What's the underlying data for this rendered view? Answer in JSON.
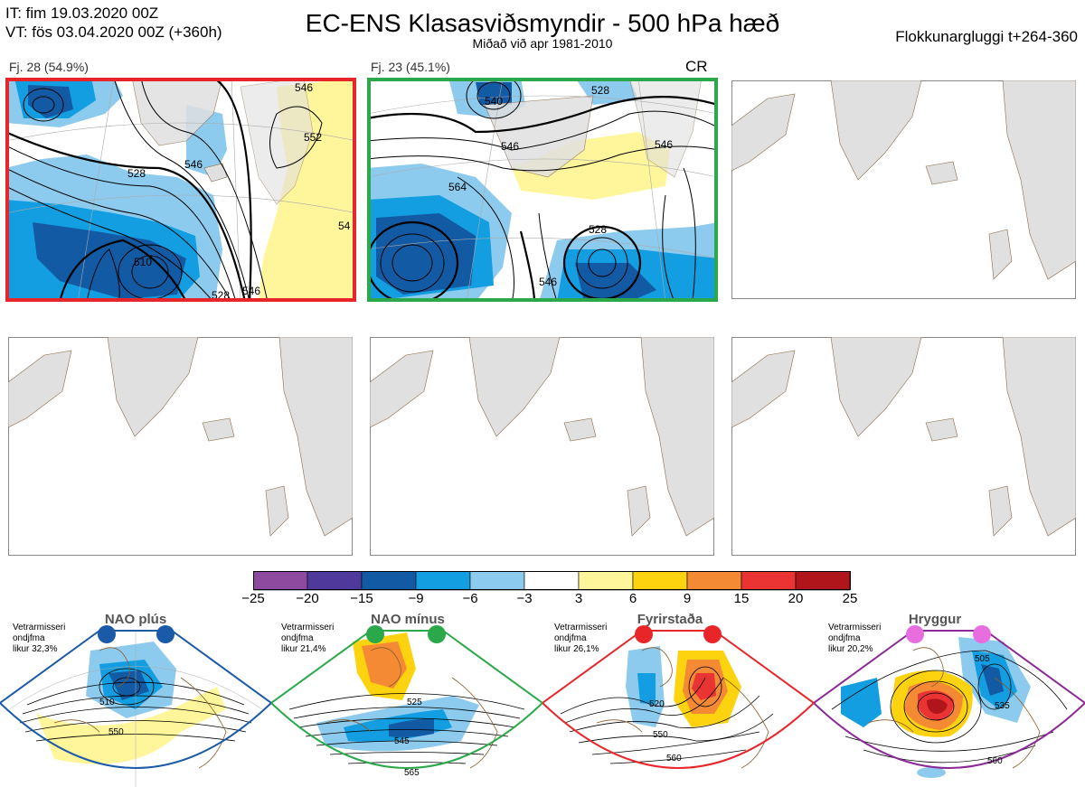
{
  "header": {
    "it_line": "IT: fim 19.03.2020 00Z",
    "vt_line": "VT: fös 03.04.2020 00Z  (+360h)",
    "title": "EC-ENS Klasasviðsmyndir - 500 hPa hæð",
    "subtitle": "Miðað við apr 1981-2010",
    "window": "Flokkunargluggi t+264-360"
  },
  "panels": [
    {
      "label": "Fj. 28 (54.9%)",
      "border": "#e8262a",
      "tag": "",
      "contours": [
        "546",
        "552",
        "528",
        "546",
        "510",
        "528",
        "546",
        "54"
      ]
    },
    {
      "label": "Fj. 23 (45.1%)",
      "border": "#2aa84a",
      "tag": "CR",
      "contours": [
        "540",
        "528",
        "546",
        "546",
        "564",
        "528",
        "546"
      ]
    }
  ],
  "colorbar": {
    "colors": [
      "#8e4a9e",
      "#4f3a9c",
      "#135aa4",
      "#129ee0",
      "#8dcbee",
      "#ffffff",
      "#fff59a",
      "#fdd310",
      "#f48a34",
      "#ea3433",
      "#b0151b"
    ],
    "labels": [
      "−25",
      "−20",
      "−15",
      "−9",
      "−6",
      "−3",
      "3",
      "6",
      "9",
      "15",
      "20",
      "25"
    ]
  },
  "regimes": [
    {
      "title": "NAO plús",
      "note": [
        "Vetrarmisseri",
        "ondjfma",
        "likur 32,3%"
      ],
      "color": "#1a5aa8",
      "contours": [
        "510",
        "550"
      ]
    },
    {
      "title": "NAO mínus",
      "note": [
        "Vetrarmisseri",
        "ondjfma",
        "likur 21,4%"
      ],
      "color": "#2aa84a",
      "contours": [
        "525",
        "545",
        "565"
      ]
    },
    {
      "title": "Fyrirstaða",
      "note": [
        "Vetrarmisseri",
        "ondjfma",
        "likur 26,1%"
      ],
      "color": "#e8262a",
      "contours": [
        "520",
        "550",
        "560"
      ]
    },
    {
      "title": "Hryggur",
      "note": [
        "Vetrarmisseri",
        "ondjfma",
        "likur 20,2%"
      ],
      "color": "#8a2a96",
      "contours": [
        "505",
        "535",
        "560"
      ]
    }
  ]
}
